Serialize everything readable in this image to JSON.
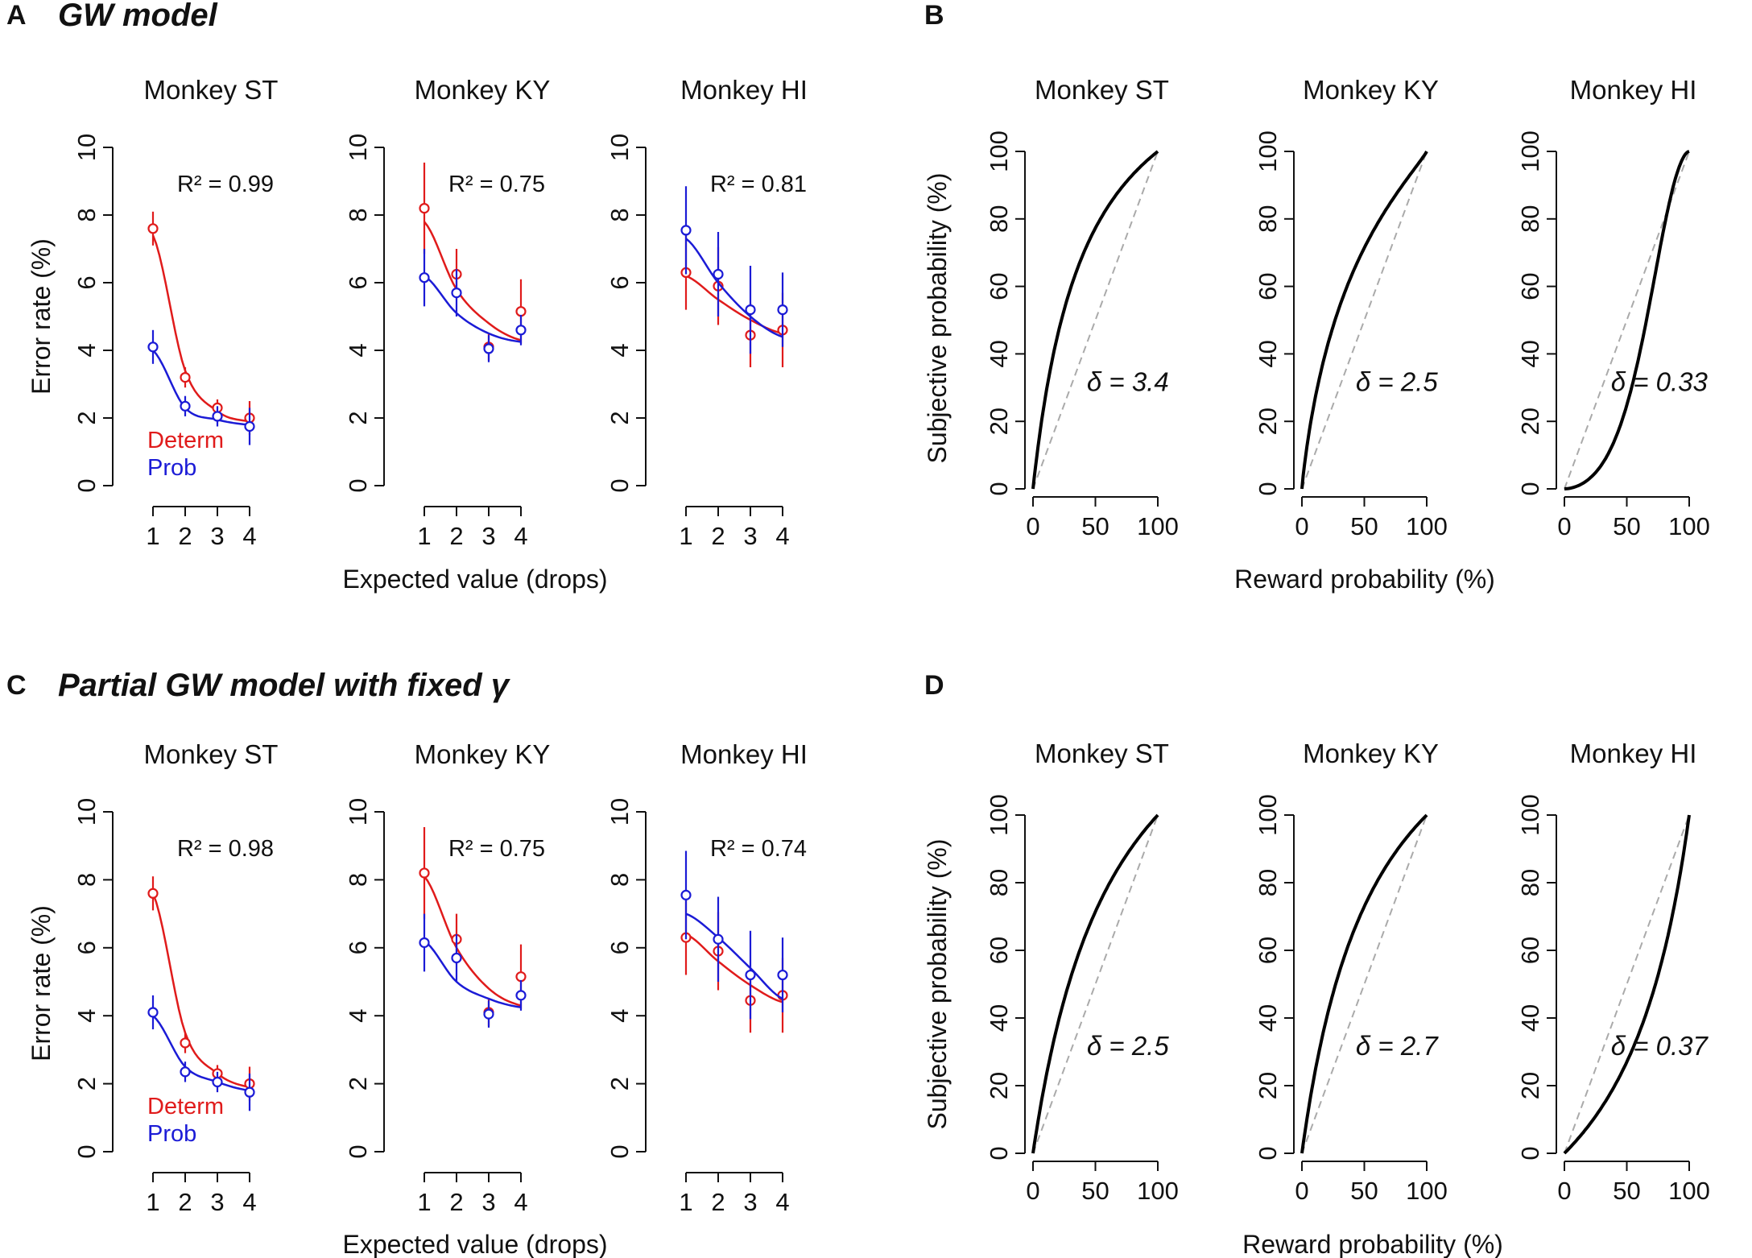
{
  "figure": {
    "panels": [
      {
        "letter": "A",
        "title": "GW model"
      },
      {
        "letter": "B",
        "title": ""
      },
      {
        "letter": "C",
        "title": "Partial GW model with fixed γ"
      },
      {
        "letter": "D",
        "title": ""
      }
    ],
    "error_xlabel": "Expected value (drops)",
    "error_ylabel": "Error rate (%)",
    "prob_xlabel": "Reward probability (%)",
    "prob_ylabel": "Subjective probability (%)",
    "legend": {
      "determ": "Determ",
      "prob": "Prob"
    },
    "colors": {
      "determ": "#e01b1b",
      "prob": "#1b1bd6",
      "curve": "#000000",
      "diagonal": "#aaaaaa"
    }
  },
  "chart_data": [
    {
      "id": "A-ST",
      "type": "scatter",
      "panel": "A",
      "title": "Monkey ST",
      "rsq": "R² = 0.99",
      "xlabel": "Expected value (drops)",
      "ylabel": "Error rate (%)",
      "x": [
        1,
        2,
        3,
        4
      ],
      "xlim": [
        0.7,
        4.3
      ],
      "ylim": [
        0,
        10
      ],
      "series": [
        {
          "name": "Determ",
          "values": [
            7.6,
            3.2,
            2.3,
            2.0
          ],
          "err": [
            0.5,
            0.3,
            0.25,
            0.5
          ],
          "fit": [
            7.4,
            3.4,
            2.2,
            1.9
          ]
        },
        {
          "name": "Prob",
          "values": [
            4.1,
            2.35,
            2.05,
            1.75
          ],
          "err": [
            0.5,
            0.3,
            0.3,
            0.55
          ],
          "fit": [
            4.0,
            2.3,
            1.95,
            1.8
          ]
        }
      ]
    },
    {
      "id": "A-KY",
      "type": "scatter",
      "panel": "A",
      "title": "Monkey KY",
      "rsq": "R² = 0.75",
      "xlabel": "",
      "ylabel": "",
      "x": [
        1,
        2,
        3,
        4
      ],
      "xlim": [
        0.7,
        4.3
      ],
      "ylim": [
        0,
        10
      ],
      "series": [
        {
          "name": "Determ",
          "values": [
            8.2,
            6.25,
            4.1,
            5.15
          ],
          "err": [
            1.35,
            0.75,
            0.4,
            0.95
          ],
          "fit": [
            7.8,
            5.8,
            4.8,
            4.3
          ]
        },
        {
          "name": "Prob",
          "values": [
            6.15,
            5.7,
            4.05,
            4.6
          ],
          "err": [
            0.85,
            0.7,
            0.4,
            0.45
          ],
          "fit": [
            6.2,
            5.1,
            4.5,
            4.25
          ]
        }
      ]
    },
    {
      "id": "A-HI",
      "type": "scatter",
      "panel": "A",
      "title": "Monkey HI",
      "rsq": "R² = 0.81",
      "xlabel": "",
      "ylabel": "",
      "x": [
        1,
        2,
        3,
        4
      ],
      "xlim": [
        0.7,
        4.3
      ],
      "ylim": [
        0,
        10
      ],
      "series": [
        {
          "name": "Determ",
          "values": [
            6.3,
            5.9,
            4.45,
            4.6
          ],
          "err": [
            1.1,
            1.15,
            0.95,
            1.1
          ],
          "fit": [
            6.2,
            5.5,
            4.9,
            4.5
          ]
        },
        {
          "name": "Prob",
          "values": [
            7.55,
            6.25,
            5.2,
            5.2
          ],
          "err": [
            1.3,
            1.25,
            1.3,
            1.1
          ],
          "fit": [
            7.3,
            6.0,
            5.0,
            4.4
          ]
        }
      ]
    },
    {
      "id": "C-ST",
      "type": "scatter",
      "panel": "C",
      "title": "Monkey ST",
      "rsq": "R² = 0.98",
      "xlabel": "Expected value (drops)",
      "ylabel": "Error rate (%)",
      "x": [
        1,
        2,
        3,
        4
      ],
      "xlim": [
        0.7,
        4.3
      ],
      "ylim": [
        0,
        10
      ],
      "series": [
        {
          "name": "Determ",
          "values": [
            7.6,
            3.2,
            2.3,
            2.0
          ],
          "err": [
            0.5,
            0.3,
            0.25,
            0.5
          ],
          "fit": [
            7.6,
            3.5,
            2.3,
            1.9
          ]
        },
        {
          "name": "Prob",
          "values": [
            4.1,
            2.35,
            2.05,
            1.75
          ],
          "err": [
            0.5,
            0.3,
            0.3,
            0.55
          ],
          "fit": [
            4.0,
            2.5,
            2.05,
            1.8
          ]
        }
      ]
    },
    {
      "id": "C-KY",
      "type": "scatter",
      "panel": "C",
      "title": "Monkey KY",
      "rsq": "R² = 0.75",
      "xlabel": "",
      "ylabel": "",
      "x": [
        1,
        2,
        3,
        4
      ],
      "xlim": [
        0.7,
        4.3
      ],
      "ylim": [
        0,
        10
      ],
      "series": [
        {
          "name": "Determ",
          "values": [
            8.2,
            6.25,
            4.1,
            5.15
          ],
          "err": [
            1.35,
            0.75,
            0.4,
            0.95
          ],
          "fit": [
            8.1,
            6.0,
            4.8,
            4.3
          ]
        },
        {
          "name": "Prob",
          "values": [
            6.15,
            5.7,
            4.05,
            4.6
          ],
          "err": [
            0.85,
            0.7,
            0.4,
            0.45
          ],
          "fit": [
            6.2,
            5.0,
            4.5,
            4.25
          ]
        }
      ]
    },
    {
      "id": "C-HI",
      "type": "scatter",
      "panel": "C",
      "title": "Monkey HI",
      "rsq": "R² = 0.74",
      "xlabel": "",
      "ylabel": "",
      "x": [
        1,
        2,
        3,
        4
      ],
      "xlim": [
        0.7,
        4.3
      ],
      "ylim": [
        0,
        10
      ],
      "series": [
        {
          "name": "Determ",
          "values": [
            6.3,
            5.9,
            4.45,
            4.6
          ],
          "err": [
            1.1,
            1.15,
            0.95,
            1.1
          ],
          "fit": [
            6.4,
            5.6,
            4.9,
            4.4
          ]
        },
        {
          "name": "Prob",
          "values": [
            7.55,
            6.25,
            5.2,
            5.2
          ],
          "err": [
            1.3,
            1.25,
            1.3,
            1.1
          ],
          "fit": [
            7.0,
            6.3,
            5.4,
            4.5
          ]
        }
      ]
    },
    {
      "id": "B-ST",
      "type": "line",
      "panel": "B",
      "title": "Monkey ST",
      "delta_label": "δ = 3.4",
      "delta": 3.4,
      "gamma": 1.0,
      "xlabel": "",
      "ylabel": "Subjective probability (%)",
      "xlim": [
        0,
        100
      ],
      "ylim": [
        0,
        100
      ]
    },
    {
      "id": "B-KY",
      "type": "line",
      "panel": "B",
      "title": "Monkey KY",
      "delta_label": "δ = 2.5",
      "delta": 2.5,
      "gamma": 0.9,
      "xlabel": "Reward probability (%)",
      "ylabel": "",
      "xlim": [
        0,
        100
      ],
      "ylim": [
        0,
        100
      ]
    },
    {
      "id": "B-HI",
      "type": "line",
      "panel": "B",
      "title": "Monkey HI",
      "delta_label": "δ = 0.33",
      "delta": 0.33,
      "gamma": 1.7,
      "xlabel": "",
      "ylabel": "",
      "xlim": [
        0,
        100
      ],
      "ylim": [
        0,
        100
      ]
    },
    {
      "id": "D-ST",
      "type": "line",
      "panel": "D",
      "title": "Monkey ST",
      "delta_label": "δ = 2.5",
      "delta": 2.5,
      "gamma": 1.0,
      "xlabel": "",
      "ylabel": "Subjective probability (%)",
      "xlim": [
        0,
        100
      ],
      "ylim": [
        0,
        100
      ]
    },
    {
      "id": "D-KY",
      "type": "line",
      "panel": "D",
      "title": "Monkey KY",
      "delta_label": "δ = 2.7",
      "delta": 2.7,
      "gamma": 1.0,
      "xlabel": "Reward probability (%)",
      "ylabel": "",
      "xlim": [
        0,
        100
      ],
      "ylim": [
        0,
        100
      ]
    },
    {
      "id": "D-HI",
      "type": "line",
      "panel": "D",
      "title": "Monkey HI",
      "delta_label": "δ = 0.37",
      "delta": 0.37,
      "gamma": 1.0,
      "xlabel": "",
      "ylabel": "",
      "xlim": [
        0,
        100
      ],
      "ylim": [
        0,
        100
      ]
    }
  ]
}
